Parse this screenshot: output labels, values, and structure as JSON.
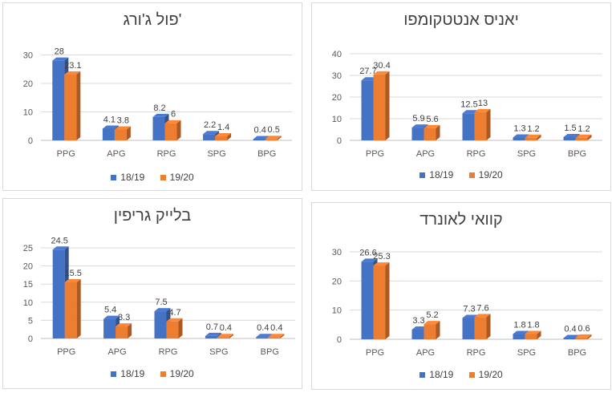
{
  "colors": {
    "series1": "#4472c4",
    "series2": "#ed7d31"
  },
  "chart_data": [
    {
      "type": "bar",
      "title": "פול ג'ורג'",
      "categories": [
        "PPG",
        "APG",
        "RPG",
        "SPG",
        "BPG"
      ],
      "series": [
        {
          "name": "18/19",
          "values": [
            28,
            4.1,
            8.2,
            2.2,
            0.4
          ]
        },
        {
          "name": "19/20",
          "values": [
            23.1,
            3.8,
            6,
            1.4,
            0.5
          ]
        }
      ],
      "yticks": [
        0,
        10,
        20,
        30
      ],
      "ylim": [
        0,
        31
      ],
      "legend": "bottom",
      "grid": true
    },
    {
      "type": "bar",
      "title": "יאניס אנטטקומפו",
      "categories": [
        "PPG",
        "APG",
        "RPG",
        "SPG",
        "BPG"
      ],
      "series": [
        {
          "name": "18/19",
          "values": [
            27.7,
            5.9,
            12.5,
            1.3,
            1.5
          ]
        },
        {
          "name": "19/20",
          "values": [
            30.4,
            5.6,
            13,
            1.2,
            1.2
          ]
        }
      ],
      "yticks": [
        0,
        10,
        20,
        30,
        40
      ],
      "ylim": [
        0,
        40
      ],
      "legend": "bottom",
      "grid": true
    },
    {
      "type": "bar",
      "title": "בלייק גריפין",
      "categories": [
        "PPG",
        "APG",
        "RPG",
        "SPG",
        "BPG"
      ],
      "series": [
        {
          "name": "18/19",
          "values": [
            24.5,
            5.4,
            7.5,
            0.7,
            0.4
          ]
        },
        {
          "name": "19/20",
          "values": [
            15.5,
            3.3,
            4.7,
            0.4,
            0.4
          ]
        }
      ],
      "yticks": [
        0,
        5,
        10,
        15,
        20,
        25
      ],
      "ylim": [
        0,
        25
      ],
      "legend": "bottom",
      "grid": true
    },
    {
      "type": "bar",
      "title": "קוואי לאונרד",
      "categories": [
        "PPG",
        "APG",
        "RPG",
        "SPG",
        "BPG"
      ],
      "series": [
        {
          "name": "18/19",
          "values": [
            26.6,
            3.3,
            7.3,
            1.8,
            0.4
          ]
        },
        {
          "name": "19/20",
          "values": [
            25.3,
            5.2,
            7.6,
            1.8,
            0.6
          ]
        }
      ],
      "yticks": [
        0,
        10,
        20,
        30
      ],
      "ylim": [
        0,
        30
      ],
      "legend": "bottom",
      "grid": true
    }
  ]
}
